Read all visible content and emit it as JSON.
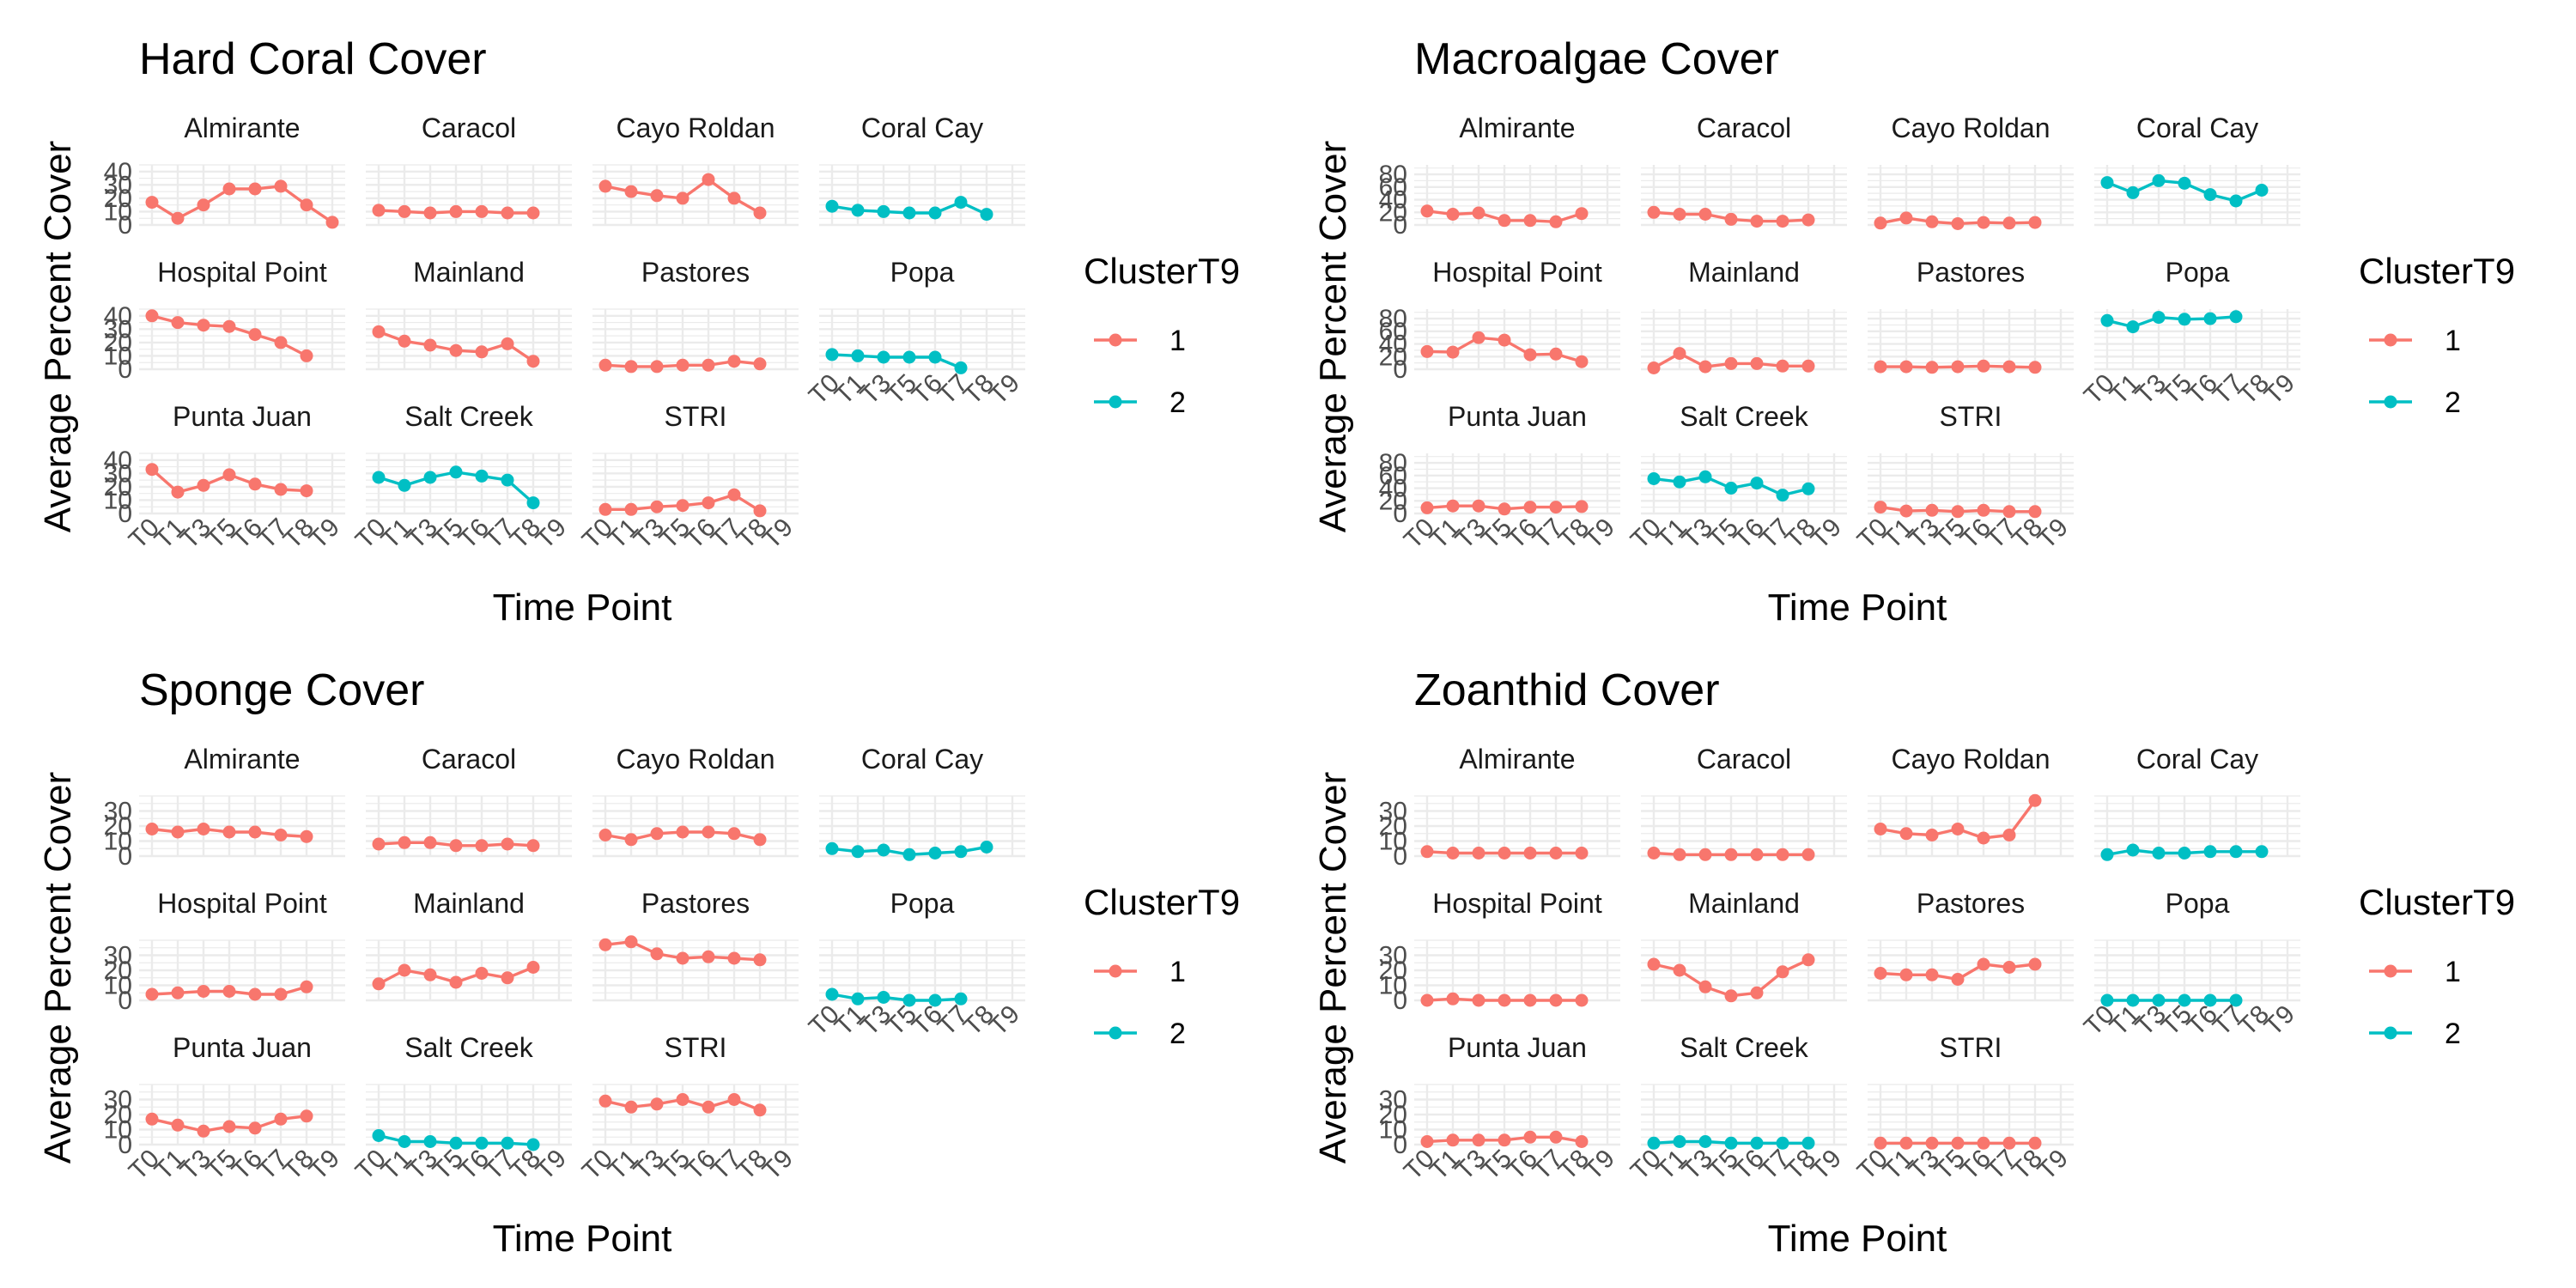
{
  "legend": {
    "title": "ClusterT9",
    "items": [
      {
        "label": "1",
        "color": "#F8766D"
      },
      {
        "label": "2",
        "color": "#00BFC4"
      }
    ]
  },
  "chart_data": [
    {
      "type": "line",
      "title": "Hard Coral Cover",
      "xlabel": "Time Point",
      "ylabel": "Average Percent Cover",
      "x": [
        "T0",
        "T1",
        "T3",
        "T5",
        "T6",
        "T7",
        "T8",
        "T9"
      ],
      "ylim": [
        0,
        45
      ],
      "yticks": [
        0,
        10,
        20,
        30,
        40
      ],
      "series": [
        {
          "name": "Almirante",
          "cluster": "1",
          "values": [
            17,
            5,
            15,
            27,
            27,
            29,
            15,
            2
          ]
        },
        {
          "name": "Caracol",
          "cluster": "1",
          "values": [
            11,
            10,
            9,
            10,
            10,
            9,
            9,
            null
          ],
          "x_override": [
            "T0",
            "T1",
            "T3",
            "T5",
            "T6",
            "T7",
            "T8",
            "T9"
          ]
        },
        {
          "name": "Cayo Roldan",
          "cluster": "1",
          "values": [
            29,
            25,
            22,
            20,
            34,
            20,
            9,
            null
          ]
        },
        {
          "name": "Coral Cay",
          "cluster": "2",
          "values": [
            14,
            11,
            10,
            9,
            9,
            17,
            8,
            null
          ]
        },
        {
          "name": "Hospital Point",
          "cluster": "1",
          "values": [
            40,
            35,
            33,
            32,
            26,
            20,
            10,
            null
          ]
        },
        {
          "name": "Mainland",
          "cluster": "1",
          "values": [
            28,
            21,
            18,
            14,
            13,
            19,
            6,
            null
          ]
        },
        {
          "name": "Pastores",
          "cluster": "1",
          "values": [
            3,
            2,
            2,
            3,
            3,
            6,
            4,
            null
          ]
        },
        {
          "name": "Popa",
          "cluster": "2",
          "values": [
            11,
            10,
            9,
            9,
            9,
            1,
            null,
            null
          ]
        },
        {
          "name": "Punta Juan",
          "cluster": "1",
          "values": [
            33,
            16,
            21,
            29,
            22,
            18,
            17,
            null
          ]
        },
        {
          "name": "Salt Creek",
          "cluster": "2",
          "values": [
            27,
            21,
            27,
            31,
            28,
            25,
            8,
            null
          ]
        },
        {
          "name": "STRI",
          "cluster": "1",
          "values": [
            3,
            3,
            5,
            6,
            8,
            14,
            2,
            null
          ]
        }
      ]
    },
    {
      "type": "line",
      "title": "Macroalgae Cover",
      "xlabel": "Time Point",
      "ylabel": "Average Percent Cover",
      "x": [
        "T0",
        "T1",
        "T3",
        "T5",
        "T6",
        "T7",
        "T8",
        "T9"
      ],
      "ylim": [
        0,
        95
      ],
      "yticks": [
        0,
        20,
        40,
        60,
        80
      ],
      "series": [
        {
          "name": "Almirante",
          "cluster": "1",
          "values": [
            22,
            17,
            19,
            7,
            7,
            5,
            18,
            null
          ]
        },
        {
          "name": "Caracol",
          "cluster": "1",
          "values": [
            20,
            17,
            17,
            9,
            6,
            6,
            8,
            null
          ]
        },
        {
          "name": "Cayo Roldan",
          "cluster": "1",
          "values": [
            3,
            11,
            5,
            2,
            4,
            3,
            4,
            null
          ]
        },
        {
          "name": "Coral Cay",
          "cluster": "2",
          "values": [
            67,
            51,
            70,
            66,
            48,
            38,
            55,
            null
          ]
        },
        {
          "name": "Hospital Point",
          "cluster": "1",
          "values": [
            28,
            27,
            50,
            46,
            23,
            24,
            12,
            null
          ]
        },
        {
          "name": "Mainland",
          "cluster": "1",
          "values": [
            2,
            25,
            4,
            9,
            9,
            5,
            5,
            null
          ]
        },
        {
          "name": "Pastores",
          "cluster": "1",
          "values": [
            4,
            4,
            3,
            4,
            5,
            4,
            3,
            null
          ]
        },
        {
          "name": "Popa",
          "cluster": "2",
          "values": [
            77,
            67,
            82,
            79,
            80,
            83,
            null,
            null
          ]
        },
        {
          "name": "Punta Juan",
          "cluster": "1",
          "values": [
            9,
            12,
            12,
            7,
            10,
            10,
            11,
            null
          ]
        },
        {
          "name": "Salt Creek",
          "cluster": "2",
          "values": [
            55,
            50,
            58,
            40,
            48,
            29,
            39,
            null
          ]
        },
        {
          "name": "STRI",
          "cluster": "1",
          "values": [
            10,
            4,
            5,
            3,
            5,
            3,
            3,
            null
          ]
        }
      ]
    },
    {
      "type": "line",
      "title": "Sponge Cover",
      "xlabel": "Time Point",
      "ylabel": "Average Percent Cover",
      "x": [
        "T0",
        "T1",
        "T3",
        "T5",
        "T6",
        "T7",
        "T8",
        "T9"
      ],
      "ylim": [
        0,
        40
      ],
      "yticks": [
        0,
        10,
        20,
        30
      ],
      "series": [
        {
          "name": "Almirante",
          "cluster": "1",
          "values": [
            18,
            16,
            18,
            16,
            16,
            14,
            13,
            null
          ]
        },
        {
          "name": "Caracol",
          "cluster": "1",
          "values": [
            8,
            9,
            9,
            7,
            7,
            8,
            7,
            null
          ]
        },
        {
          "name": "Cayo Roldan",
          "cluster": "1",
          "values": [
            14,
            11,
            15,
            16,
            16,
            15,
            11,
            null
          ]
        },
        {
          "name": "Coral Cay",
          "cluster": "2",
          "values": [
            5,
            3,
            4,
            1,
            2,
            3,
            6,
            null
          ]
        },
        {
          "name": "Hospital Point",
          "cluster": "1",
          "values": [
            4,
            5,
            6,
            6,
            4,
            4,
            9,
            null
          ]
        },
        {
          "name": "Mainland",
          "cluster": "1",
          "values": [
            11,
            20,
            17,
            12,
            18,
            15,
            22,
            null
          ]
        },
        {
          "name": "Pastores",
          "cluster": "1",
          "values": [
            37,
            39,
            31,
            28,
            29,
            28,
            27,
            null
          ]
        },
        {
          "name": "Popa",
          "cluster": "2",
          "values": [
            4,
            1,
            2,
            0,
            0,
            1,
            null,
            null
          ]
        },
        {
          "name": "Punta Juan",
          "cluster": "1",
          "values": [
            17,
            13,
            9,
            12,
            11,
            17,
            19,
            null
          ]
        },
        {
          "name": "Salt Creek",
          "cluster": "2",
          "values": [
            6,
            2,
            2,
            1,
            1,
            1,
            0,
            null
          ]
        },
        {
          "name": "STRI",
          "cluster": "1",
          "values": [
            29,
            25,
            27,
            30,
            25,
            30,
            23,
            null
          ]
        }
      ]
    },
    {
      "type": "line",
      "title": "Zoanthid Cover",
      "xlabel": "Time Point",
      "ylabel": "Average Percent Cover",
      "x": [
        "T0",
        "T1",
        "T3",
        "T5",
        "T6",
        "T7",
        "T8",
        "T9"
      ],
      "ylim": [
        0,
        40
      ],
      "yticks": [
        0,
        10,
        20,
        30
      ],
      "series": [
        {
          "name": "Almirante",
          "cluster": "1",
          "values": [
            3,
            2,
            2,
            2,
            2,
            2,
            2,
            null
          ]
        },
        {
          "name": "Caracol",
          "cluster": "1",
          "values": [
            2,
            1,
            1,
            1,
            1,
            1,
            1,
            null
          ]
        },
        {
          "name": "Cayo Roldan",
          "cluster": "1",
          "values": [
            18,
            15,
            14,
            18,
            12,
            14,
            37,
            null
          ]
        },
        {
          "name": "Coral Cay",
          "cluster": "2",
          "values": [
            1,
            4,
            2,
            2,
            3,
            3,
            3,
            null
          ]
        },
        {
          "name": "Hospital Point",
          "cluster": "1",
          "values": [
            0,
            1,
            0,
            0,
            0,
            0,
            0,
            null
          ]
        },
        {
          "name": "Mainland",
          "cluster": "1",
          "values": [
            24,
            20,
            9,
            3,
            5,
            19,
            27,
            null
          ]
        },
        {
          "name": "Pastores",
          "cluster": "1",
          "values": [
            18,
            17,
            17,
            14,
            24,
            22,
            24,
            null
          ]
        },
        {
          "name": "Popa",
          "cluster": "2",
          "values": [
            0,
            0,
            0,
            0,
            0,
            0,
            null,
            null
          ]
        },
        {
          "name": "Punta Juan",
          "cluster": "1",
          "values": [
            2,
            3,
            3,
            3,
            5,
            5,
            2,
            null
          ]
        },
        {
          "name": "Salt Creek",
          "cluster": "2",
          "values": [
            1,
            2,
            2,
            1,
            1,
            1,
            1,
            null
          ]
        },
        {
          "name": "STRI",
          "cluster": "1",
          "values": [
            1,
            1,
            1,
            1,
            1,
            1,
            1,
            null
          ]
        }
      ]
    }
  ]
}
